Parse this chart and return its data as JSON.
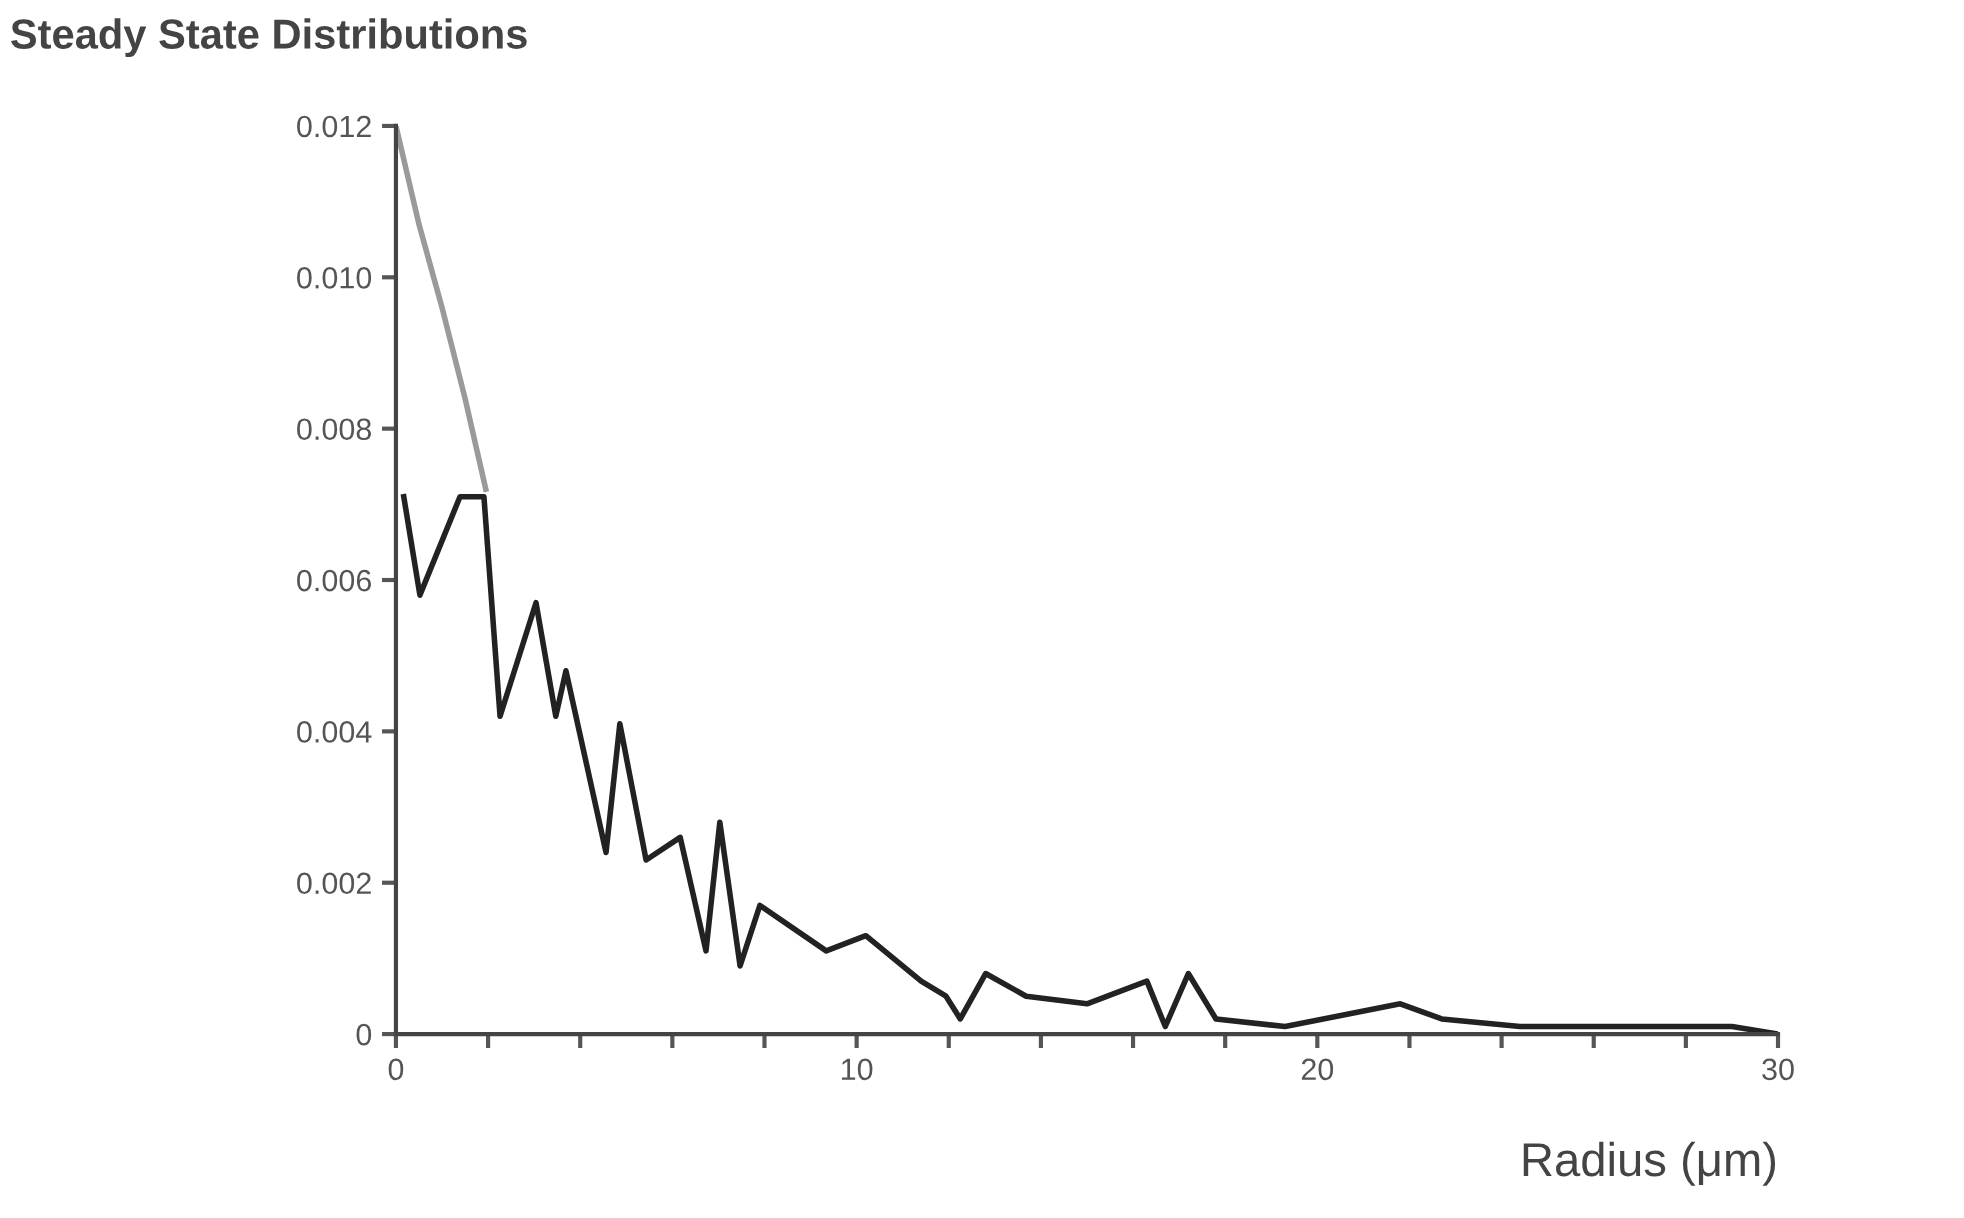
{
  "chart_data": {
    "type": "line",
    "title": "Steady State Distributions",
    "xlabel": "Radius (μm)",
    "xlim": [
      0,
      30
    ],
    "ylim": [
      0,
      0.012
    ],
    "xticks": [
      0,
      {
        "value": 2,
        "label": null
      },
      {
        "value": 4,
        "label": null
      },
      {
        "value": 6,
        "label": null
      },
      {
        "value": 8,
        "label": null
      },
      10,
      {
        "value": 12,
        "label": null
      },
      {
        "value": 14,
        "label": null
      },
      {
        "value": 16,
        "label": null
      },
      {
        "value": 18,
        "label": null
      },
      20,
      {
        "value": 22,
        "label": null
      },
      {
        "value": 24,
        "label": null
      },
      {
        "value": 26,
        "label": null
      },
      {
        "value": 28,
        "label": null
      },
      30
    ],
    "yticks": [
      0,
      0.002,
      0.004,
      0.006,
      0.008,
      {
        "value": 0.01,
        "label": "0.010"
      },
      0.012
    ],
    "marker": "none",
    "line_style": "solid",
    "series": [
      {
        "color": "#9a9a9a",
        "x": [
          0,
          0.5,
          1,
          1.5,
          1.95
        ],
        "values": [
          0.012,
          0.0107,
          0.0096,
          0.0084,
          0.0072
        ]
      },
      {
        "color": "#222222",
        "x": [
          0.17,
          0.52,
          1.39,
          1.91,
          2.26,
          3.04,
          3.47,
          3.69,
          4.56,
          4.86,
          5.43,
          6.17,
          6.73,
          7.03,
          7.47,
          7.9,
          9.34,
          10.2,
          11.4,
          11.94,
          12.25,
          12.8,
          13.68,
          15.0,
          16.3,
          16.7,
          17.2,
          17.8,
          19.3,
          21.8,
          22.7,
          24.4,
          25.8,
          29.0,
          30
        ],
        "values": [
          0.0071,
          0.0058,
          0.0071,
          0.0071,
          0.0042,
          0.0057,
          0.0042,
          0.0048,
          0.0024,
          0.0041,
          0.0023,
          0.0026,
          0.0011,
          0.0028,
          0.0009,
          0.0017,
          0.0011,
          0.0013,
          0.0007,
          0.0005,
          0.0002,
          0.0008,
          0.0005,
          0.0004,
          0.0007,
          0.0001,
          0.0008,
          0.0002,
          0.0001,
          0.0004,
          0.0002,
          0.0001,
          0.0001,
          0.0001,
          0
        ]
      }
    ]
  }
}
